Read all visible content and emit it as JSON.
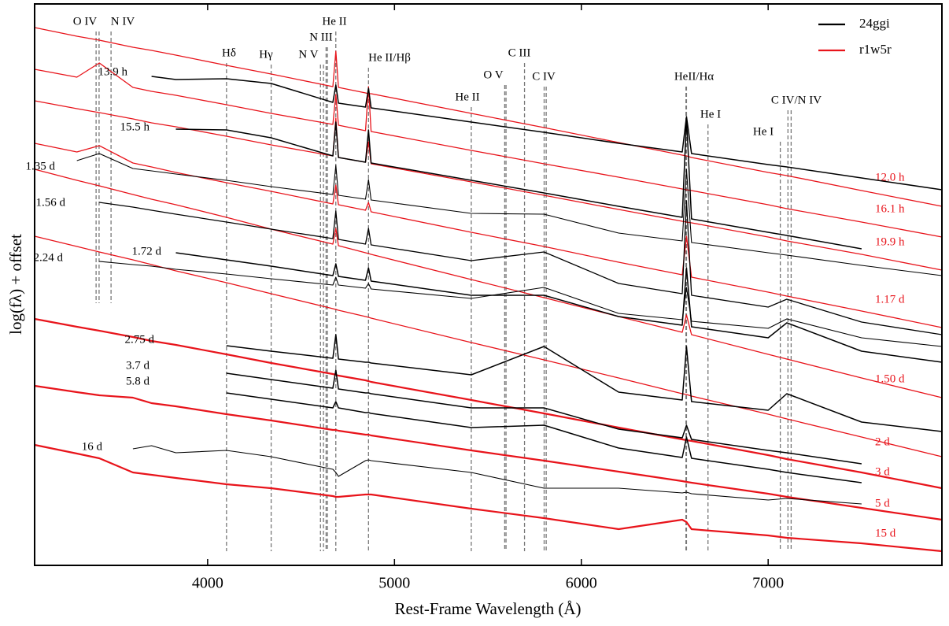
{
  "chart_data": {
    "type": "line",
    "xlabel": "Rest-Frame Wavelength (Å)",
    "ylabel": "log(fλ) + offset",
    "xlim": [
      3074,
      7930
    ],
    "xticks": [
      4000,
      5000,
      6000,
      7000
    ],
    "ylim": [
      0,
      713
    ],
    "legend_position": "upper right",
    "legend": [
      {
        "name": "24ggi",
        "color": "#000000"
      },
      {
        "name": "r1w5r",
        "color": "#e8141b"
      }
    ],
    "x": [
      3074,
      3300,
      3420,
      3600,
      3700,
      3830,
      4101,
      4340,
      4670,
      4686,
      4700,
      4845,
      4861,
      4875,
      5411,
      5800,
      6200,
      6540,
      6563,
      6590,
      7000,
      7100,
      7500,
      7930
    ],
    "series": [
      {
        "name": "12.0 h",
        "model": "r1w5r",
        "color": "#e8141b",
        "linewidth": 1.3,
        "values": [
          683,
          672,
          667,
          658,
          654,
          648,
          635,
          624,
          608,
          653,
          607,
          600,
          599,
          599,
          574,
          556,
          537,
          521,
          520,
          518,
          499,
          495,
          476,
          456
        ]
      },
      {
        "name": "16.1 h",
        "model": "r1w5r",
        "color": "#e8141b",
        "linewidth": 1.3,
        "values": [
          630,
          620,
          638,
          607,
          602,
          597,
          585,
          574,
          560,
          598,
          559,
          552,
          608,
          551,
          527,
          510,
          493,
          478,
          477,
          476,
          458,
          453,
          436,
          417
        ]
      },
      {
        "name": "19.9 h",
        "model": "r1w5r",
        "color": "#e8141b",
        "linewidth": 1.3,
        "values": [
          590,
          580,
          575,
          567,
          562,
          557,
          545,
          534,
          520,
          568,
          518,
          512,
          538,
          510,
          487,
          470,
          452,
          437,
          436,
          435,
          417,
          412,
          395,
          375
        ]
      },
      {
        "name": "1.17 d",
        "model": "r1w5r",
        "color": "#e8141b",
        "linewidth": 1.3,
        "values": [
          536,
          525,
          533,
          511,
          506,
          499,
          486,
          475,
          459,
          483,
          458,
          451,
          461,
          449,
          423,
          405,
          385,
          369,
          418,
          366,
          347,
          342,
          323,
          302
        ]
      },
      {
        "name": "1.50 d",
        "model": "r1w5r",
        "color": "#e8141b",
        "linewidth": 1.3,
        "values": [
          503,
          489,
          482,
          471,
          465,
          458,
          442,
          427,
          408,
          428,
          406,
          397,
          396,
          395,
          363,
          340,
          316,
          296,
          318,
          293,
          268,
          262,
          238,
          213
        ]
      },
      {
        "name": "2 d",
        "model": "r1w5r",
        "color": "#e8141b",
        "linewidth": 1.3,
        "values": [
          418,
          405,
          398,
          388,
          382,
          374,
          359,
          345,
          326,
          325,
          324,
          316,
          315,
          314,
          283,
          261,
          238,
          218,
          217,
          215,
          192,
          186,
          163,
          138
        ]
      },
      {
        "name": "3 d",
        "model": "r1w5r",
        "color": "#e8141b",
        "linewidth": 2.2,
        "values": [
          313,
          303,
          298,
          290,
          285,
          280,
          268,
          257,
          243,
          242,
          241,
          235,
          234,
          233,
          210,
          193,
          175,
          160,
          159,
          158,
          140,
          135,
          118,
          98
        ]
      },
      {
        "name": "5 d",
        "model": "r1w5r",
        "color": "#e8141b",
        "linewidth": 2.2,
        "values": [
          228,
          220,
          216,
          213,
          206,
          202,
          192,
          184,
          172,
          172,
          171,
          166,
          166,
          165,
          146,
          133,
          119,
          107,
          106,
          105,
          91,
          87,
          73,
          58
        ]
      },
      {
        "name": "15 d",
        "model": "r1w5r",
        "color": "#e8141b",
        "linewidth": 2.2,
        "values": [
          153,
          142,
          136,
          118,
          115,
          111,
          103,
          98,
          88,
          87,
          87,
          90,
          90,
          90,
          72,
          60,
          46,
          58,
          55,
          46,
          38,
          35,
          28,
          18
        ]
      },
      {
        "name": "13.9 h",
        "model": "24ggi",
        "color": "#000000",
        "linewidth": 1.5,
        "values": [
          null,
          null,
          null,
          null,
          621,
          617,
          618,
          612,
          588,
          610,
          587,
          582,
          606,
          581,
          563,
          550,
          536,
          525,
          570,
          523,
          509,
          506,
          492,
          477
        ]
      },
      {
        "name": "15.5 h",
        "model": "24ggi",
        "color": "#000000",
        "linewidth": 1.5,
        "values": [
          null,
          null,
          null,
          null,
          null,
          554,
          553,
          543,
          520,
          563,
          518,
          512,
          553,
          511,
          489,
          473,
          456,
          442,
          568,
          440,
          423,
          419,
          402,
          null
        ]
      },
      {
        "name": "1.35 d",
        "model": "24ggi",
        "color": "#000000",
        "linewidth": 1.1,
        "values": [
          null,
          514,
          523,
          504,
          501,
          497,
          489,
          481,
          471,
          508,
          470,
          465,
          490,
          464,
          447,
          446,
          422,
          412,
          503,
          410,
          397,
          394,
          381,
          368
        ]
      },
      {
        "name": "1.56 d",
        "model": "24ggi",
        "color": "#000000",
        "linewidth": 1.3,
        "values": [
          null,
          null,
          461,
          455,
          451,
          446,
          436,
          427,
          415,
          450,
          414,
          408,
          428,
          407,
          387,
          398,
          358,
          345,
          463,
          343,
          328,
          338,
          309,
          293
        ]
      },
      {
        "name": "1.72 d",
        "model": "24ggi",
        "color": "#000000",
        "linewidth": 1.5,
        "values": [
          null,
          null,
          null,
          null,
          null,
          397,
          388,
          380,
          368,
          383,
          367,
          362,
          378,
          361,
          343,
          343,
          316,
          305,
          378,
          303,
          289,
          308,
          272,
          258
        ]
      },
      {
        "name": "2.24 d",
        "model": "24ggi",
        "color": "#000000",
        "linewidth": 1.1,
        "values": [
          null,
          null,
          386,
          382,
          380,
          376,
          370,
          364,
          356,
          366,
          356,
          352,
          358,
          351,
          339,
          353,
          320,
          312,
          353,
          310,
          301,
          313,
          289,
          278
        ]
      },
      {
        "name": "2.75 d",
        "model": "24ggi",
        "color": "#000000",
        "linewidth": 1.5,
        "values": [
          null,
          null,
          null,
          null,
          null,
          null,
          279,
          272,
          263,
          293,
          262,
          258,
          258,
          257,
          242,
          278,
          220,
          210,
          278,
          208,
          197,
          218,
          182,
          170
        ]
      },
      {
        "name": "3.7 d",
        "model": "24ggi",
        "color": "#000000",
        "linewidth": 1.5,
        "values": [
          null,
          null,
          null,
          null,
          null,
          null,
          244,
          236,
          225,
          248,
          224,
          219,
          219,
          218,
          200,
          200,
          173,
          162,
          178,
          160,
          146,
          143,
          129,
          null
        ]
      },
      {
        "name": "5.8 d",
        "model": "24ggi",
        "color": "#000000",
        "linewidth": 1.5,
        "values": [
          null,
          null,
          null,
          null,
          null,
          null,
          219,
          211,
          200,
          208,
          200,
          194,
          194,
          193,
          175,
          178,
          149,
          137,
          163,
          136,
          122,
          118,
          105,
          null
        ]
      },
      {
        "name": "16 d",
        "model": "24ggi",
        "color": "#000000",
        "linewidth": 1.1,
        "values": [
          null,
          null,
          null,
          148,
          152,
          143,
          146,
          138,
          122,
          118,
          113,
          133,
          134,
          133,
          118,
          98,
          98,
          92,
          93,
          91,
          83,
          85,
          78,
          null
        ]
      }
    ],
    "annotations": [
      {
        "label": "O IV",
        "x": [
          3403,
          3419
        ]
      },
      {
        "label": "N IV",
        "x": [
          3483
        ]
      },
      {
        "label": "Hδ",
        "x": [
          4101
        ]
      },
      {
        "label": "Hγ",
        "x": [
          4340
        ]
      },
      {
        "label": "N V",
        "x": [
          4604,
          4620
        ]
      },
      {
        "label": "N III",
        "x": [
          4634,
          4641
        ]
      },
      {
        "label": "He II",
        "x": [
          4686
        ]
      },
      {
        "label": "He II/Hβ",
        "x": [
          4861
        ]
      },
      {
        "label": "He II",
        "x": [
          5411
        ]
      },
      {
        "label": "O V",
        "x": [
          5590,
          5597
        ]
      },
      {
        "label": "C III",
        "x": [
          5696
        ]
      },
      {
        "label": "C IV",
        "x": [
          5801,
          5812
        ]
      },
      {
        "label": "HeII/Hα",
        "x": [
          6560,
          6563
        ]
      },
      {
        "label": "He I",
        "x": [
          6678
        ]
      },
      {
        "label": "He I",
        "x": [
          7065
        ]
      },
      {
        "label": "C IV/N IV",
        "x": [
          7106,
          7123
        ]
      }
    ]
  }
}
